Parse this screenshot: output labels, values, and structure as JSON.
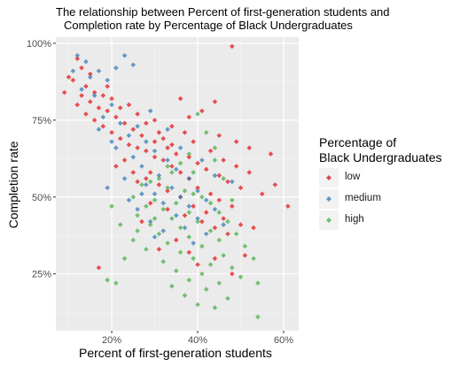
{
  "chart_data": {
    "type": "scatter",
    "title_lines": [
      "The relationship between Percent of first-generation students and",
      "Completion rate by Percentage of Black Undergraduates"
    ],
    "xlabel": "Percent of first-generation students",
    "ylabel": "Completion rate",
    "xlim": [
      0.07,
      0.635
    ],
    "ylim": [
      0.065,
      1.02
    ],
    "x_ticks": [
      0.2,
      0.4,
      0.6
    ],
    "x_tick_labels": [
      "20%",
      "40%",
      "60%"
    ],
    "y_ticks": [
      0.25,
      0.5,
      0.75,
      1.0
    ],
    "y_tick_labels": [
      "25%",
      "50%",
      "75%",
      "100%"
    ],
    "grid": true,
    "legend": {
      "title": [
        "Percentage of",
        "Black Undergraduates"
      ],
      "position": "right",
      "entries": [
        {
          "label": "low",
          "color": "#E41A1C"
        },
        {
          "label": "medium",
          "color": "#377EB8"
        },
        {
          "label": "high",
          "color": "#4DAF4A"
        }
      ]
    },
    "series": [
      {
        "name": "low",
        "color": "#E41A1C",
        "points": [
          [
            0.48,
            0.99
          ],
          [
            0.12,
            0.95
          ],
          [
            0.13,
            0.92
          ],
          [
            0.15,
            0.9
          ],
          [
            0.11,
            0.88
          ],
          [
            0.14,
            0.86
          ],
          [
            0.09,
            0.84
          ],
          [
            0.16,
            0.84
          ],
          [
            0.18,
            0.83
          ],
          [
            0.2,
            0.82
          ],
          [
            0.12,
            0.8
          ],
          [
            0.17,
            0.79
          ],
          [
            0.19,
            0.78
          ],
          [
            0.14,
            0.77
          ],
          [
            0.21,
            0.76
          ],
          [
            0.16,
            0.75
          ],
          [
            0.23,
            0.74
          ],
          [
            0.18,
            0.73
          ],
          [
            0.25,
            0.72
          ],
          [
            0.2,
            0.71
          ],
          [
            0.27,
            0.7
          ],
          [
            0.22,
            0.69
          ],
          [
            0.3,
            0.68
          ],
          [
            0.24,
            0.67
          ],
          [
            0.26,
            0.66
          ],
          [
            0.33,
            0.66
          ],
          [
            0.28,
            0.65
          ],
          [
            0.35,
            0.64
          ],
          [
            0.3,
            0.63
          ],
          [
            0.38,
            0.63
          ],
          [
            0.32,
            0.62
          ],
          [
            0.4,
            0.61
          ],
          [
            0.21,
            0.6
          ],
          [
            0.34,
            0.6
          ],
          [
            0.42,
            0.59
          ],
          [
            0.25,
            0.58
          ],
          [
            0.36,
            0.58
          ],
          [
            0.45,
            0.57
          ],
          [
            0.28,
            0.56
          ],
          [
            0.38,
            0.56
          ],
          [
            0.47,
            0.55
          ],
          [
            0.31,
            0.54
          ],
          [
            0.4,
            0.53
          ],
          [
            0.5,
            0.53
          ],
          [
            0.33,
            0.52
          ],
          [
            0.43,
            0.51
          ],
          [
            0.36,
            0.5
          ],
          [
            0.45,
            0.49
          ],
          [
            0.29,
            0.48
          ],
          [
            0.39,
            0.47
          ],
          [
            0.48,
            0.47
          ],
          [
            0.33,
            0.46
          ],
          [
            0.42,
            0.45
          ],
          [
            0.37,
            0.44
          ],
          [
            0.46,
            0.43
          ],
          [
            0.41,
            0.42
          ],
          [
            0.5,
            0.41
          ],
          [
            0.44,
            0.4
          ],
          [
            0.53,
            0.4
          ],
          [
            0.47,
            0.38
          ],
          [
            0.58,
            0.54
          ],
          [
            0.61,
            0.47
          ],
          [
            0.57,
            0.64
          ],
          [
            0.44,
            0.81
          ],
          [
            0.41,
            0.78
          ],
          [
            0.38,
            0.76
          ],
          [
            0.36,
            0.82
          ],
          [
            0.31,
            0.71
          ],
          [
            0.34,
            0.73
          ],
          [
            0.45,
            0.7
          ],
          [
            0.49,
            0.68
          ],
          [
            0.52,
            0.66
          ],
          [
            0.29,
            0.58
          ],
          [
            0.23,
            0.62
          ],
          [
            0.26,
            0.55
          ],
          [
            0.17,
            0.27
          ],
          [
            0.38,
            0.32
          ],
          [
            0.44,
            0.3
          ],
          [
            0.48,
            0.25
          ],
          [
            0.35,
            0.36
          ],
          [
            0.4,
            0.28
          ],
          [
            0.31,
            0.33
          ],
          [
            0.27,
            0.42
          ],
          [
            0.51,
            0.31
          ],
          [
            0.1,
            0.89
          ],
          [
            0.13,
            0.83
          ],
          [
            0.15,
            0.81
          ],
          [
            0.19,
            0.86
          ],
          [
            0.22,
            0.79
          ],
          [
            0.24,
            0.8
          ],
          [
            0.26,
            0.77
          ],
          [
            0.28,
            0.74
          ],
          [
            0.3,
            0.75
          ],
          [
            0.32,
            0.69
          ],
          [
            0.34,
            0.67
          ],
          [
            0.37,
            0.71
          ],
          [
            0.39,
            0.68
          ],
          [
            0.43,
            0.65
          ],
          [
            0.46,
            0.62
          ],
          [
            0.49,
            0.6
          ],
          [
            0.52,
            0.58
          ],
          [
            0.55,
            0.51
          ]
        ]
      },
      {
        "name": "medium",
        "color": "#377EB8",
        "points": [
          [
            0.12,
            0.96
          ],
          [
            0.14,
            0.94
          ],
          [
            0.23,
            0.96
          ],
          [
            0.25,
            0.93
          ],
          [
            0.21,
            0.92
          ],
          [
            0.17,
            0.91
          ],
          [
            0.11,
            0.91
          ],
          [
            0.15,
            0.89
          ],
          [
            0.19,
            0.88
          ],
          [
            0.13,
            0.85
          ],
          [
            0.16,
            0.83
          ],
          [
            0.2,
            0.8
          ],
          [
            0.18,
            0.76
          ],
          [
            0.22,
            0.74
          ],
          [
            0.26,
            0.73
          ],
          [
            0.24,
            0.7
          ],
          [
            0.28,
            0.68
          ],
          [
            0.21,
            0.66
          ],
          [
            0.3,
            0.65
          ],
          [
            0.25,
            0.63
          ],
          [
            0.33,
            0.62
          ],
          [
            0.27,
            0.6
          ],
          [
            0.35,
            0.59
          ],
          [
            0.31,
            0.57
          ],
          [
            0.23,
            0.56
          ],
          [
            0.38,
            0.56
          ],
          [
            0.28,
            0.54
          ],
          [
            0.34,
            0.53
          ],
          [
            0.4,
            0.52
          ],
          [
            0.3,
            0.51
          ],
          [
            0.36,
            0.5
          ],
          [
            0.42,
            0.49
          ],
          [
            0.32,
            0.48
          ],
          [
            0.38,
            0.47
          ],
          [
            0.26,
            0.46
          ],
          [
            0.44,
            0.46
          ],
          [
            0.35,
            0.44
          ],
          [
            0.4,
            0.43
          ],
          [
            0.29,
            0.42
          ],
          [
            0.46,
            0.41
          ],
          [
            0.37,
            0.4
          ],
          [
            0.32,
            0.39
          ],
          [
            0.42,
            0.38
          ],
          [
            0.27,
            0.51
          ],
          [
            0.19,
            0.53
          ],
          [
            0.24,
            0.49
          ],
          [
            0.33,
            0.72
          ],
          [
            0.29,
            0.78
          ],
          [
            0.2,
            0.68
          ],
          [
            0.17,
            0.72
          ],
          [
            0.36,
            0.66
          ],
          [
            0.41,
            0.62
          ],
          [
            0.44,
            0.57
          ],
          [
            0.48,
            0.55
          ],
          [
            0.3,
            0.37
          ],
          [
            0.39,
            0.35
          ]
        ]
      },
      {
        "name": "high",
        "color": "#4DAF4A",
        "points": [
          [
            0.4,
            0.77
          ],
          [
            0.42,
            0.71
          ],
          [
            0.44,
            0.66
          ],
          [
            0.38,
            0.64
          ],
          [
            0.36,
            0.61
          ],
          [
            0.34,
            0.58
          ],
          [
            0.31,
            0.56
          ],
          [
            0.29,
            0.55
          ],
          [
            0.27,
            0.54
          ],
          [
            0.33,
            0.53
          ],
          [
            0.37,
            0.52
          ],
          [
            0.39,
            0.51
          ],
          [
            0.41,
            0.5
          ],
          [
            0.25,
            0.5
          ],
          [
            0.3,
            0.49
          ],
          [
            0.35,
            0.48
          ],
          [
            0.43,
            0.48
          ],
          [
            0.28,
            0.47
          ],
          [
            0.32,
            0.46
          ],
          [
            0.38,
            0.45
          ],
          [
            0.45,
            0.45
          ],
          [
            0.26,
            0.44
          ],
          [
            0.34,
            0.43
          ],
          [
            0.4,
            0.42
          ],
          [
            0.47,
            0.42
          ],
          [
            0.29,
            0.41
          ],
          [
            0.36,
            0.4
          ],
          [
            0.43,
            0.39
          ],
          [
            0.31,
            0.38
          ],
          [
            0.49,
            0.38
          ],
          [
            0.38,
            0.37
          ],
          [
            0.45,
            0.36
          ],
          [
            0.33,
            0.35
          ],
          [
            0.41,
            0.34
          ],
          [
            0.51,
            0.34
          ],
          [
            0.28,
            0.33
          ],
          [
            0.36,
            0.32
          ],
          [
            0.46,
            0.31
          ],
          [
            0.39,
            0.3
          ],
          [
            0.53,
            0.3
          ],
          [
            0.32,
            0.29
          ],
          [
            0.43,
            0.28
          ],
          [
            0.48,
            0.27
          ],
          [
            0.35,
            0.26
          ],
          [
            0.41,
            0.25
          ],
          [
            0.5,
            0.24
          ],
          [
            0.38,
            0.23
          ],
          [
            0.45,
            0.22
          ],
          [
            0.54,
            0.22
          ],
          [
            0.19,
            0.23
          ],
          [
            0.21,
            0.22
          ],
          [
            0.34,
            0.21
          ],
          [
            0.42,
            0.2
          ],
          [
            0.37,
            0.18
          ],
          [
            0.47,
            0.17
          ],
          [
            0.4,
            0.15
          ],
          [
            0.44,
            0.14
          ],
          [
            0.54,
            0.11
          ],
          [
            0.23,
            0.3
          ],
          [
            0.25,
            0.36
          ],
          [
            0.2,
            0.47
          ],
          [
            0.22,
            0.41
          ],
          [
            0.26,
            0.39
          ],
          [
            0.3,
            0.43
          ],
          [
            0.48,
            0.49
          ],
          [
            0.46,
            0.56
          ],
          [
            0.39,
            0.58
          ],
          [
            0.33,
            0.6
          ],
          [
            0.44,
            0.62
          ]
        ]
      }
    ]
  }
}
